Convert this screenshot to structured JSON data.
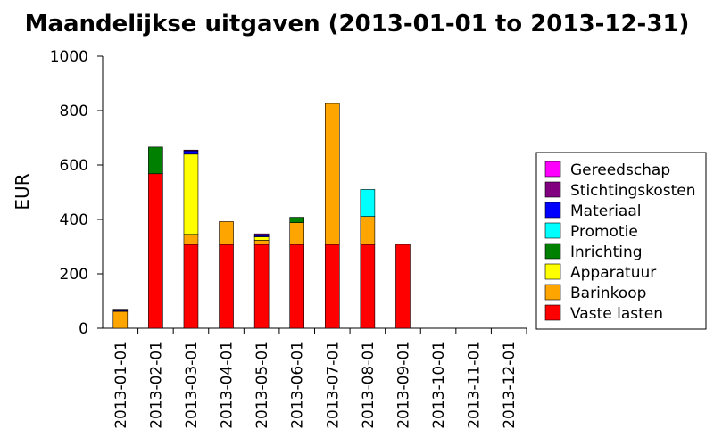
{
  "chart_data": {
    "type": "bar",
    "stacked": true,
    "title": "Maandelijkse uitgaven (2013-01-01 to 2013-12-31)",
    "xlabel": "",
    "ylabel": "EUR",
    "ylim": [
      0,
      1000
    ],
    "yticks": [
      0,
      200,
      400,
      600,
      800,
      1000
    ],
    "grid": false,
    "legend_position": "right",
    "categories": [
      "2013-01-01",
      "2013-02-01",
      "2013-03-01",
      "2013-04-01",
      "2013-05-01",
      "2013-06-01",
      "2013-07-01",
      "2013-08-01",
      "2013-09-01",
      "2013-10-01",
      "2013-11-01",
      "2013-12-01"
    ],
    "series": [
      {
        "name": "Vaste lasten",
        "color": "#ff0000",
        "values": [
          0,
          568,
          308,
          308,
          308,
          308,
          308,
          308,
          308,
          0,
          0,
          0
        ]
      },
      {
        "name": "Barinkoop",
        "color": "#ffa500",
        "values": [
          62,
          0,
          37,
          84,
          15,
          80,
          518,
          103,
          0,
          0,
          0,
          0
        ]
      },
      {
        "name": "Apparatuur",
        "color": "#ffff00",
        "values": [
          0,
          0,
          295,
          0,
          13,
          0,
          0,
          0,
          0,
          0,
          0,
          0
        ]
      },
      {
        "name": "Inrichting",
        "color": "#008000",
        "values": [
          0,
          98,
          0,
          0,
          0,
          20,
          0,
          0,
          0,
          0,
          0,
          0
        ]
      },
      {
        "name": "Promotie",
        "color": "#00ffff",
        "values": [
          0,
          0,
          0,
          0,
          0,
          0,
          0,
          99,
          0,
          0,
          0,
          0
        ]
      },
      {
        "name": "Materiaal",
        "color": "#0000ff",
        "values": [
          3,
          0,
          12,
          0,
          5,
          0,
          0,
          0,
          0,
          0,
          0,
          0
        ]
      },
      {
        "name": "Stichtingskosten",
        "color": "#800080",
        "values": [
          5,
          0,
          3,
          0,
          3,
          0,
          0,
          0,
          0,
          0,
          0,
          0
        ]
      },
      {
        "name": "Gereedschap",
        "color": "#ff00ff",
        "values": [
          0,
          0,
          0,
          0,
          3,
          0,
          0,
          0,
          0,
          0,
          0,
          0
        ]
      }
    ]
  }
}
